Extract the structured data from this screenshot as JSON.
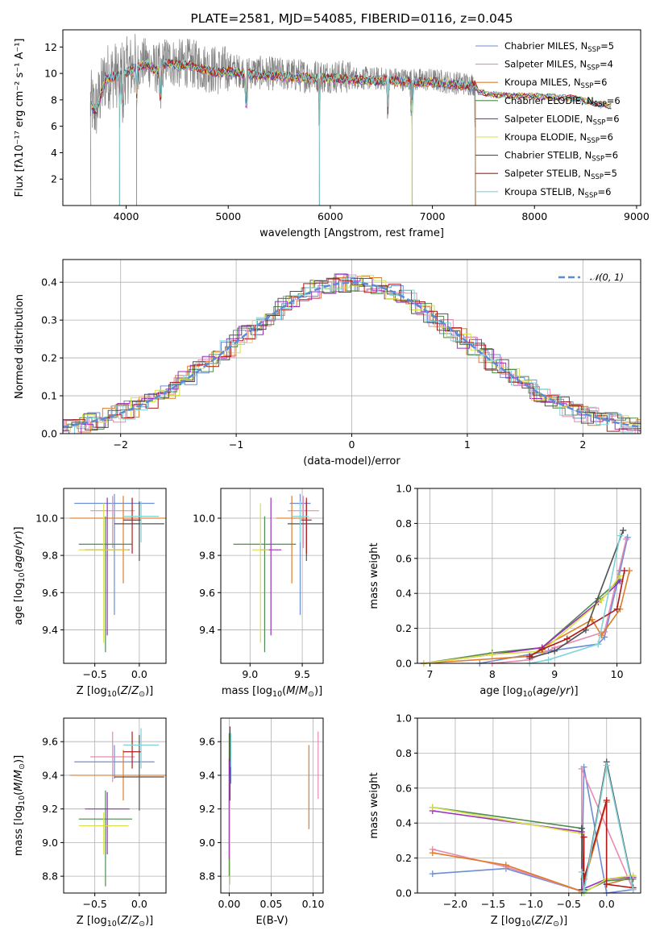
{
  "chart_data": [
    {
      "id": "spectrum",
      "type": "line",
      "title": "PLATE=2581, MJD=54085, FIBERID=0116, z=0.045",
      "xlabel": "wavelength [Angstrom, rest frame]",
      "ylabel": "Flux [fλ10⁻¹⁷ erg cm⁻² s⁻¹ A⁻¹]",
      "xlim": [
        3380,
        9040
      ],
      "ylim": [
        0,
        13.3
      ],
      "xticks": [
        4000,
        5000,
        6000,
        7000,
        8000,
        9000
      ],
      "yticks": [
        2,
        4,
        6,
        8,
        10,
        12
      ],
      "grid": false,
      "legend_position": "right",
      "series": [
        {
          "name": "Chabrier MILES, NSSP=5",
          "name_main": "Chabrier MILES, N",
          "name_sub": "SSP",
          "name_end": "=5",
          "color": "#6b8ed6"
        },
        {
          "name": "Salpeter MILES, NSSP=4",
          "name_main": "Salpeter MILES, N",
          "name_sub": "SSP",
          "name_end": "=4",
          "color": "#e88ab4"
        },
        {
          "name": "Kroupa MILES, NSSP=6",
          "name_main": "Kroupa MILES, N",
          "name_sub": "SSP",
          "name_end": "=6",
          "color": "#e07b28"
        },
        {
          "name": "Chabrier ELODIE, NSSP=6",
          "name_main": "Chabrier ELODIE, N",
          "name_sub": "SSP",
          "name_end": "=6",
          "color": "#4f8a4f"
        },
        {
          "name": "Salpeter ELODIE, NSSP=6",
          "name_main": "Salpeter ELODIE, N",
          "name_sub": "SSP",
          "name_end": "=6",
          "color": "#9a2fbf"
        },
        {
          "name": "Kroupa ELODIE, NSSP=6",
          "name_main": "Kroupa ELODIE, N",
          "name_sub": "SSP",
          "name_end": "=6",
          "color": "#d6e04a"
        },
        {
          "name": "Chabrier STELIB, NSSP=6",
          "name_main": "Chabrier STELIB, N",
          "name_sub": "SSP",
          "name_end": "=6",
          "color": "#505050"
        },
        {
          "name": "Salpeter STELIB, NSSP=5",
          "name_main": "Salpeter STELIB, N",
          "name_sub": "SSP",
          "name_end": "=5",
          "color": "#b01a1a"
        },
        {
          "name": "Kroupa STELIB, NSSP=6",
          "name_main": "Kroupa STELIB, N",
          "name_sub": "SSP",
          "name_end": "=6",
          "color": "#7fd4d8"
        }
      ],
      "observed_color": "#808080",
      "continuum_x": [
        3650,
        3700,
        3750,
        3800,
        3900,
        4000,
        4100,
        4200,
        4300,
        4400,
        4500,
        4600,
        4700,
        4800,
        4900,
        5000,
        5200,
        5400,
        5600,
        5800,
        6000,
        6200,
        6400,
        6600,
        6800,
        7000,
        7200,
        7400
      ],
      "continuum_y": [
        7.8,
        7.2,
        8.5,
        9.8,
        9.9,
        10.2,
        10.6,
        10.9,
        10.3,
        11.0,
        10.7,
        10.8,
        10.6,
        10.4,
        10.2,
        10.3,
        10.1,
        10.0,
        9.9,
        9.8,
        9.8,
        9.7,
        9.6,
        9.6,
        9.5,
        9.5,
        9.3,
        9.2
      ],
      "model_extension_x": [
        7450,
        7600,
        7800,
        8000,
        8200,
        8400,
        8600,
        8750
      ],
      "model_extension_y": [
        8.6,
        8.4,
        8.3,
        8.3,
        8.2,
        8.1,
        7.7,
        7.5
      ],
      "absorption_lines_x": [
        3934,
        3969,
        4102,
        4340,
        5175,
        5892,
        6563,
        6800,
        7420
      ]
    },
    {
      "id": "residuals",
      "type": "line",
      "xlabel": "(data-model)/error",
      "ylabel": "Normed distribution",
      "xlim": [
        -2.5,
        2.5
      ],
      "ylim": [
        0,
        0.46
      ],
      "xticks": [
        -2,
        -1,
        0,
        1,
        2
      ],
      "yticks": [
        0.0,
        0.1,
        0.2,
        0.3,
        0.4
      ],
      "grid": true,
      "legend_position": "upper right",
      "reference_label": "𝒩(0, 1)",
      "reference_color": "#5b8bd6"
    },
    {
      "id": "age-vs-Z",
      "type": "scatter",
      "xlabel": "Z [log10(Z/Z⊙)]",
      "ylabel": "age  [log10(age/yr)]",
      "xlim": [
        -0.85,
        0.3
      ],
      "ylim": [
        9.22,
        10.16
      ],
      "xticks": [
        -0.5,
        0.0
      ],
      "yticks": [
        9.4,
        9.6,
        9.8,
        10.0
      ],
      "grid": true,
      "points": [
        {
          "x": -0.28,
          "y": 10.08,
          "xerr": 0.45,
          "yerr_up": 0.05,
          "yerr_down": 0.6
        },
        {
          "x": -0.3,
          "y": 10.04,
          "xerr": 0.25,
          "yerr_up": 0.08,
          "yerr_down": 0.2
        },
        {
          "x": -0.18,
          "y": 10.0,
          "xerr": 0.6,
          "yerr_up": 0.12,
          "yerr_down": 0.35
        },
        {
          "x": -0.38,
          "y": 9.86,
          "xerr": 0.3,
          "yerr_up": 0.15,
          "yerr_down": 0.58
        },
        {
          "x": -0.36,
          "y": 9.83,
          "xerr": 0.25,
          "yerr_up": 0.28,
          "yerr_down": 0.46
        },
        {
          "x": -0.4,
          "y": 9.83,
          "xerr": 0.28,
          "yerr_up": 0.25,
          "yerr_down": 0.5
        },
        {
          "x": 0.0,
          "y": 9.97,
          "xerr": 0.28,
          "yerr_up": 0.12,
          "yerr_down": 0.2
        },
        {
          "x": -0.08,
          "y": 9.99,
          "xerr": 0.1,
          "yerr_up": 0.12,
          "yerr_down": 0.18
        },
        {
          "x": 0.02,
          "y": 10.01,
          "xerr": 0.2,
          "yerr_up": 0.08,
          "yerr_down": 0.14
        }
      ]
    },
    {
      "id": "age-vs-mass",
      "type": "scatter",
      "xlabel": "mass [log10(M/M⊙)]",
      "ylabel": "",
      "xlim": [
        8.72,
        9.7
      ],
      "ylim": [
        9.22,
        10.16
      ],
      "xticks": [
        9.0,
        9.5
      ],
      "yticks": [
        9.4,
        9.6,
        9.8,
        10.0
      ],
      "grid": true,
      "points": [
        {
          "x": 9.48,
          "y": 10.08,
          "xerr": 0.1,
          "yerr_up": 0.05,
          "yerr_down": 0.6
        },
        {
          "x": 9.51,
          "y": 10.04,
          "xerr": 0.15,
          "yerr_up": 0.08,
          "yerr_down": 0.2
        },
        {
          "x": 9.4,
          "y": 10.0,
          "xerr": 0.15,
          "yerr_up": 0.12,
          "yerr_down": 0.35
        },
        {
          "x": 9.14,
          "y": 9.86,
          "xerr": 0.3,
          "yerr_up": 0.15,
          "yerr_down": 0.58
        },
        {
          "x": 9.2,
          "y": 9.83,
          "xerr": 0.1,
          "yerr_up": 0.28,
          "yerr_down": 0.46
        },
        {
          "x": 9.1,
          "y": 9.83,
          "xerr": 0.08,
          "yerr_up": 0.25,
          "yerr_down": 0.5
        },
        {
          "x": 9.54,
          "y": 9.97,
          "xerr": 0.18,
          "yerr_up": 0.12,
          "yerr_down": 0.2
        },
        {
          "x": 9.54,
          "y": 9.99,
          "xerr": 0.05,
          "yerr_up": 0.12,
          "yerr_down": 0.18
        },
        {
          "x": 9.48,
          "y": 10.01,
          "xerr": 0.08,
          "yerr_up": 0.08,
          "yerr_down": 0.14
        }
      ]
    },
    {
      "id": "massweight-vs-age",
      "type": "line",
      "xlabel": "age  [log10(age/yr)]",
      "ylabel": "mass weight",
      "xlim": [
        6.8,
        10.38
      ],
      "ylim": [
        0,
        1.0
      ],
      "xticks": [
        7,
        8,
        9,
        10
      ],
      "yticks": [
        0.0,
        0.2,
        0.4,
        0.6,
        0.8,
        1.0
      ],
      "grid": true,
      "series": [
        {
          "x": [
            7.8,
            8.9,
            9.7,
            9.8,
            10.05,
            10.17
          ],
          "y": [
            0.0,
            0.07,
            0.11,
            0.15,
            0.53,
            0.72
          ]
        },
        {
          "x": [
            8.0,
            8.6,
            9.0,
            9.8,
            10.15
          ],
          "y": [
            0.0,
            0.02,
            0.09,
            0.18,
            0.71
          ]
        },
        {
          "x": [
            6.9,
            8.6,
            8.8,
            9.6,
            9.75,
            10.05,
            10.2
          ],
          "y": [
            0.0,
            0.04,
            0.09,
            0.25,
            0.16,
            0.31,
            0.53
          ]
        },
        {
          "x": [
            6.9,
            8.0,
            8.8,
            9.7,
            10.05
          ],
          "y": [
            0.0,
            0.06,
            0.09,
            0.37,
            0.48
          ]
        },
        {
          "x": [
            6.9,
            8.0,
            8.8,
            9.7,
            10.05
          ],
          "y": [
            0.0,
            0.05,
            0.09,
            0.35,
            0.47
          ]
        },
        {
          "x": [
            6.9,
            8.0,
            8.8,
            9.75,
            10.05
          ],
          "y": [
            0.0,
            0.05,
            0.07,
            0.36,
            0.5
          ]
        },
        {
          "x": [
            8.6,
            9.0,
            9.5,
            10.1
          ],
          "y": [
            0.03,
            0.07,
            0.19,
            0.76
          ]
        },
        {
          "x": [
            8.6,
            8.8,
            9.2,
            10.0,
            10.12
          ],
          "y": [
            0.04,
            0.08,
            0.14,
            0.31,
            0.53
          ]
        },
        {
          "x": [
            8.6,
            8.9,
            9.7,
            10.05
          ],
          "y": [
            0.0,
            0.02,
            0.11,
            0.73
          ]
        }
      ]
    },
    {
      "id": "mass-vs-Z",
      "type": "scatter",
      "xlabel": "Z [log10(Z/Z⊙)]",
      "ylabel": "mass [log10(M/M⊙)]",
      "xlim": [
        -0.85,
        0.3
      ],
      "ylim": [
        8.7,
        9.74
      ],
      "xticks": [
        -0.5,
        0.0
      ],
      "yticks": [
        8.8,
        9.0,
        9.2,
        9.4,
        9.6
      ],
      "grid": true,
      "points": [
        {
          "x": -0.28,
          "y": 9.48,
          "xerr": 0.45,
          "yerr_up": 0.1,
          "yerr_down": 0.1
        },
        {
          "x": -0.3,
          "y": 9.51,
          "xerr": 0.25,
          "yerr_up": 0.15,
          "yerr_down": 0.15
        },
        {
          "x": -0.18,
          "y": 9.4,
          "xerr": 0.6,
          "yerr_up": 0.15,
          "yerr_down": 0.15
        },
        {
          "x": -0.38,
          "y": 9.14,
          "xerr": 0.3,
          "yerr_up": 0.17,
          "yerr_down": 0.4
        },
        {
          "x": -0.36,
          "y": 9.2,
          "xerr": 0.25,
          "yerr_up": 0.1,
          "yerr_down": 0.27
        },
        {
          "x": -0.4,
          "y": 9.1,
          "xerr": 0.28,
          "yerr_up": 0.08,
          "yerr_down": 0.17
        },
        {
          "x": 0.0,
          "y": 9.39,
          "xerr": 0.28,
          "yerr_up": 0.25,
          "yerr_down": 0.2
        },
        {
          "x": -0.08,
          "y": 9.54,
          "xerr": 0.1,
          "yerr_up": 0.12,
          "yerr_down": 0.1
        },
        {
          "x": 0.02,
          "y": 9.58,
          "xerr": 0.2,
          "yerr_up": 0.1,
          "yerr_down": 0.14
        }
      ]
    },
    {
      "id": "mass-vs-EBV",
      "type": "scatter",
      "xlabel": "E(B-V)",
      "ylabel": "",
      "xlim": [
        -0.01,
        0.112
      ],
      "ylim": [
        8.7,
        9.74
      ],
      "xticks": [
        0.0,
        0.05,
        0.1
      ],
      "yticks": [
        8.8,
        9.0,
        9.2,
        9.4,
        9.6
      ],
      "grid": true,
      "points": [
        {
          "x": 0.002,
          "y": 9.5,
          "xerr": 0.0,
          "yerr_up": 0.15,
          "yerr_down": 0.15
        },
        {
          "x": 0.106,
          "y": 9.46,
          "xerr": 0.0,
          "yerr_up": 0.2,
          "yerr_down": 0.2
        },
        {
          "x": 0.095,
          "y": 9.33,
          "xerr": 0.0,
          "yerr_up": 0.25,
          "yerr_down": 0.25
        },
        {
          "x": 0.0,
          "y": 9.25,
          "xerr": 0.0,
          "yerr_up": 0.4,
          "yerr_down": 0.45
        },
        {
          "x": 0.0,
          "y": 9.2,
          "xerr": 0.0,
          "yerr_up": 0.3,
          "yerr_down": 0.3
        },
        {
          "x": 0.001,
          "y": 9.1,
          "xerr": 0.0,
          "yerr_up": 0.3,
          "yerr_down": 0.35
        },
        {
          "x": 0.001,
          "y": 9.45,
          "xerr": 0.0,
          "yerr_up": 0.2,
          "yerr_down": 0.2
        },
        {
          "x": 0.001,
          "y": 9.6,
          "xerr": 0.0,
          "yerr_up": 0.09,
          "yerr_down": 0.12
        },
        {
          "x": 0.002,
          "y": 9.55,
          "xerr": 0.0,
          "yerr_up": 0.1,
          "yerr_down": 0.1
        }
      ]
    },
    {
      "id": "massweight-vs-Z",
      "type": "line",
      "xlabel": "Z [log10(Z/Z⊙)]",
      "ylabel": "mass weight",
      "xlim": [
        -2.5,
        0.45
      ],
      "ylim": [
        0,
        1.0
      ],
      "xticks": [
        -2.0,
        -1.5,
        -1.0,
        -0.5,
        0.0
      ],
      "yticks": [
        0.0,
        0.2,
        0.4,
        0.6,
        0.8,
        1.0
      ],
      "grid": true,
      "series": [
        {
          "x": [
            -2.3,
            -1.33,
            -0.33,
            -0.3,
            0.0,
            0.35
          ],
          "y": [
            0.11,
            0.14,
            0.01,
            0.72,
            0.0,
            0.02
          ]
        },
        {
          "x": [
            -2.3,
            -1.33,
            -0.33,
            -0.33,
            0.35
          ],
          "y": [
            0.25,
            0.15,
            0.01,
            0.71,
            0.02
          ]
        },
        {
          "x": [
            -2.3,
            -1.33,
            -0.33,
            0.0,
            0.0,
            0.35
          ],
          "y": [
            0.23,
            0.16,
            0.01,
            0.52,
            0.05,
            0.09
          ]
        },
        {
          "x": [
            -2.3,
            -0.33,
            -0.33,
            0.0,
            0.35
          ],
          "y": [
            0.49,
            0.37,
            0.0,
            0.07,
            0.08
          ]
        },
        {
          "x": [
            -2.3,
            -0.33,
            -0.33,
            0.0,
            0.35
          ],
          "y": [
            0.47,
            0.35,
            0.02,
            0.08,
            0.09
          ]
        },
        {
          "x": [
            -2.3,
            -0.33,
            -0.3,
            0.0,
            0.35
          ],
          "y": [
            0.49,
            0.34,
            0.0,
            0.08,
            0.1
          ]
        },
        {
          "x": [
            -0.33,
            -0.3,
            0.0,
            0.35
          ],
          "y": [
            0.37,
            0.02,
            0.75,
            0.03
          ]
        },
        {
          "x": [
            -0.3,
            -0.3,
            0.0,
            0.0,
            0.35
          ],
          "y": [
            0.32,
            0.08,
            0.53,
            0.05,
            0.03
          ]
        },
        {
          "x": [
            -0.33,
            -0.3,
            0.0,
            0.35
          ],
          "y": [
            0.12,
            0.01,
            0.73,
            0.02
          ]
        }
      ]
    }
  ]
}
